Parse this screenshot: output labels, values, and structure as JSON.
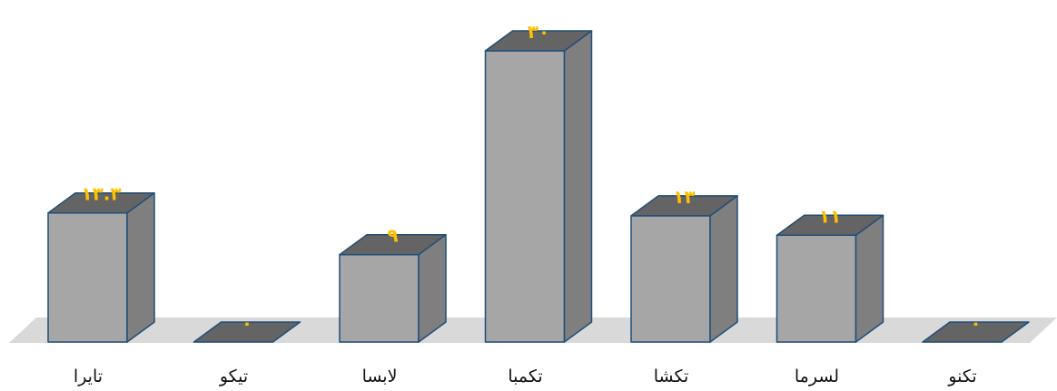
{
  "chart_data": {
    "type": "bar",
    "style": "3d-column",
    "categories": [
      "تایرا",
      "تیکو",
      "لابسا",
      "تکمبا",
      "تکشا",
      "لسرما",
      "تکنو"
    ],
    "values": [
      13.3,
      0,
      9,
      30,
      13,
      11,
      0
    ],
    "data_labels": [
      "۱۳.۳",
      "۰",
      "۹",
      "۳۰",
      "۱۳",
      "۱۱",
      "۰"
    ],
    "ylim": [
      0,
      30
    ],
    "grid": false,
    "legend": "none",
    "colors": {
      "bar_front": "#a6a6a6",
      "bar_top": "#646464",
      "bar_side": "#7f7f7f",
      "bar_outline": "#1f4e79",
      "floor": "#d9d9d9",
      "data_label": "#ffc000",
      "category_label": "#111111"
    }
  }
}
